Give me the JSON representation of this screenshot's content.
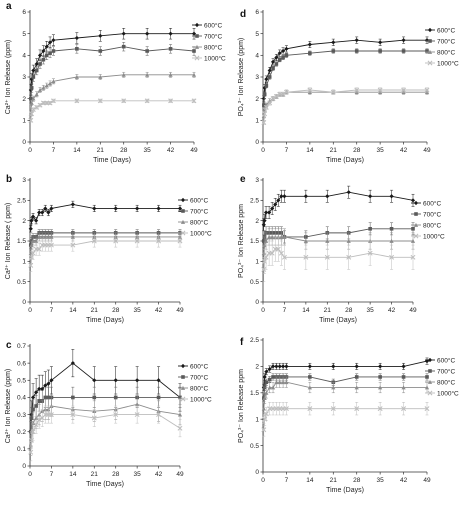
{
  "figure": {
    "x_axis_label": "Time (Days)",
    "x_ticks": [
      0,
      7,
      14,
      21,
      28,
      35,
      42,
      49
    ],
    "legend_labels": [
      "600°C",
      "700°C",
      "800°C",
      "1000°C"
    ],
    "series_colors": [
      "#1a1a1a",
      "#5a5a5a",
      "#8c8c8c",
      "#bdbdbd"
    ],
    "markers": [
      "diamond",
      "square",
      "triangle",
      "cross"
    ]
  },
  "chart_data": [
    {
      "panel": "a",
      "type": "line",
      "ylabel": "Ca²⁺ Ion Release (ppm)",
      "xlabel": "Time (Days)",
      "xlim": [
        0,
        49
      ],
      "ylim": [
        0,
        6
      ],
      "yticks": [
        0,
        1,
        2,
        3,
        4,
        5,
        6
      ],
      "x": [
        0.25,
        0.5,
        1,
        2,
        3,
        4,
        5,
        6,
        7,
        14,
        21,
        28,
        35,
        42,
        49
      ],
      "series": [
        {
          "name": "600°C",
          "values": [
            2.4,
            2.9,
            3.3,
            3.6,
            4.0,
            4.2,
            4.4,
            4.6,
            4.7,
            4.8,
            4.9,
            5.0,
            5.0,
            5.0,
            5.0
          ],
          "err": 0.25
        },
        {
          "name": "700°C",
          "values": [
            2.0,
            2.5,
            3.0,
            3.3,
            3.6,
            3.8,
            4.0,
            4.1,
            4.2,
            4.3,
            4.2,
            4.4,
            4.2,
            4.3,
            4.2
          ],
          "err": 0.2
        },
        {
          "name": "800°C",
          "values": [
            1.3,
            1.8,
            2.0,
            2.2,
            2.4,
            2.5,
            2.6,
            2.7,
            2.8,
            3.0,
            3.0,
            3.1,
            3.1,
            3.1,
            3.1
          ],
          "err": 0.12
        },
        {
          "name": "1000°C",
          "values": [
            1.0,
            1.3,
            1.5,
            1.6,
            1.7,
            1.8,
            1.8,
            1.8,
            1.9,
            1.9,
            1.9,
            1.9,
            1.9,
            1.9,
            1.9
          ],
          "err": 0.08
        }
      ]
    },
    {
      "panel": "b",
      "type": "line",
      "ylabel": "Ca²⁺ Ion Release ( ppm)",
      "xlabel": "Time (Days)",
      "xlim": [
        0,
        49
      ],
      "ylim": [
        0,
        3
      ],
      "yticks": [
        0,
        0.5,
        1,
        1.5,
        2,
        2.5,
        3
      ],
      "x": [
        0.25,
        0.5,
        1,
        2,
        3,
        4,
        5,
        6,
        7,
        14,
        21,
        28,
        35,
        42,
        49
      ],
      "series": [
        {
          "name": "600°C",
          "values": [
            1.8,
            2.0,
            2.1,
            2.0,
            2.2,
            2.2,
            2.3,
            2.2,
            2.3,
            2.4,
            2.3,
            2.3,
            2.3,
            2.3,
            2.3
          ],
          "err": 0.08
        },
        {
          "name": "700°C",
          "values": [
            1.4,
            1.5,
            1.6,
            1.6,
            1.7,
            1.7,
            1.7,
            1.7,
            1.7,
            1.7,
            1.7,
            1.7,
            1.7,
            1.7,
            1.7
          ],
          "err": 0.08
        },
        {
          "name": "800°C",
          "values": [
            1.2,
            1.4,
            1.5,
            1.5,
            1.6,
            1.6,
            1.6,
            1.6,
            1.6,
            1.6,
            1.6,
            1.6,
            1.6,
            1.6,
            1.6
          ],
          "err": 0.1
        },
        {
          "name": "1000°C",
          "values": [
            0.9,
            1.1,
            1.2,
            1.3,
            1.3,
            1.4,
            1.4,
            1.4,
            1.4,
            1.4,
            1.5,
            1.5,
            1.5,
            1.5,
            1.5
          ],
          "err": 0.15
        }
      ]
    },
    {
      "panel": "c",
      "type": "line",
      "ylabel": "Ca²⁺ Ion Release (ppm)",
      "xlabel": "Time (Days)",
      "xlim": [
        0,
        49
      ],
      "ylim": [
        0,
        0.7
      ],
      "yticks": [
        0,
        0.1,
        0.2,
        0.3,
        0.4,
        0.5,
        0.6,
        0.7
      ],
      "x": [
        0.25,
        0.5,
        1,
        2,
        3,
        4,
        5,
        6,
        7,
        14,
        21,
        28,
        35,
        42,
        49
      ],
      "series": [
        {
          "name": "600°C",
          "values": [
            0.2,
            0.3,
            0.4,
            0.43,
            0.45,
            0.45,
            0.47,
            0.48,
            0.5,
            0.6,
            0.5,
            0.5,
            0.5,
            0.5,
            0.4
          ],
          "err": 0.08
        },
        {
          "name": "700°C",
          "values": [
            0.2,
            0.28,
            0.33,
            0.35,
            0.38,
            0.38,
            0.4,
            0.4,
            0.4,
            0.4,
            0.4,
            0.4,
            0.4,
            0.4,
            0.4
          ],
          "err": 0.06
        },
        {
          "name": "800°C",
          "values": [
            0.12,
            0.2,
            0.25,
            0.28,
            0.3,
            0.32,
            0.33,
            0.33,
            0.35,
            0.33,
            0.32,
            0.33,
            0.36,
            0.32,
            0.3
          ],
          "err": 0.06
        },
        {
          "name": "1000°C",
          "values": [
            0.08,
            0.15,
            0.2,
            0.24,
            0.27,
            0.28,
            0.3,
            0.3,
            0.3,
            0.3,
            0.28,
            0.3,
            0.3,
            0.3,
            0.22
          ],
          "err": 0.05
        }
      ]
    },
    {
      "panel": "d",
      "type": "line",
      "ylabel": "PO₄³⁻ Ion Release (ppm)",
      "xlabel": "Time (Days)",
      "xlim": [
        0,
        49
      ],
      "ylim": [
        0,
        6
      ],
      "yticks": [
        0,
        1,
        2,
        3,
        4,
        5,
        6
      ],
      "x": [
        0.25,
        0.5,
        1,
        2,
        3,
        4,
        5,
        6,
        7,
        14,
        21,
        28,
        35,
        42,
        49
      ],
      "series": [
        {
          "name": "600°C",
          "values": [
            2.0,
            2.5,
            2.9,
            3.3,
            3.7,
            3.9,
            4.1,
            4.2,
            4.3,
            4.5,
            4.6,
            4.7,
            4.6,
            4.7,
            4.7
          ],
          "err": 0.15
        },
        {
          "name": "700°C",
          "values": [
            1.7,
            2.2,
            2.6,
            3.0,
            3.4,
            3.6,
            3.8,
            3.9,
            4.0,
            4.1,
            4.2,
            4.2,
            4.2,
            4.2,
            4.2
          ],
          "err": 0.1
        },
        {
          "name": "800°C",
          "values": [
            1.2,
            1.5,
            1.7,
            1.9,
            2.0,
            2.1,
            2.2,
            2.2,
            2.3,
            2.3,
            2.3,
            2.3,
            2.3,
            2.3,
            2.3
          ],
          "err": 0.1
        },
        {
          "name": "1000°C",
          "values": [
            0.9,
            1.3,
            1.6,
            1.8,
            2.0,
            2.1,
            2.2,
            2.2,
            2.3,
            2.4,
            2.3,
            2.4,
            2.4,
            2.4,
            2.4
          ],
          "err": 0.1
        }
      ]
    },
    {
      "panel": "e",
      "type": "line",
      "ylabel": "PO₄³⁻ Ion Release ppm",
      "xlabel": "Time (Days)",
      "xlim": [
        0,
        49
      ],
      "ylim": [
        0,
        3
      ],
      "yticks": [
        0,
        0.5,
        1,
        1.5,
        2,
        2.5,
        3
      ],
      "x": [
        0.25,
        0.5,
        1,
        2,
        3,
        4,
        5,
        6,
        7,
        14,
        21,
        28,
        35,
        42,
        49
      ],
      "series": [
        {
          "name": "600°C",
          "values": [
            1.9,
            2.0,
            2.2,
            2.2,
            2.3,
            2.4,
            2.5,
            2.6,
            2.6,
            2.6,
            2.6,
            2.7,
            2.6,
            2.6,
            2.5
          ],
          "err": 0.15
        },
        {
          "name": "700°C",
          "values": [
            1.5,
            1.6,
            1.7,
            1.7,
            1.7,
            1.7,
            1.7,
            1.7,
            1.6,
            1.6,
            1.7,
            1.7,
            1.8,
            1.8,
            1.8
          ],
          "err": 0.15
        },
        {
          "name": "800°C",
          "values": [
            1.2,
            1.4,
            1.5,
            1.6,
            1.6,
            1.6,
            1.6,
            1.6,
            1.6,
            1.5,
            1.5,
            1.5,
            1.5,
            1.5,
            1.5
          ],
          "err": 0.2
        },
        {
          "name": "1000°C",
          "values": [
            0.8,
            1.0,
            1.1,
            1.2,
            1.2,
            1.3,
            1.3,
            1.2,
            1.1,
            1.1,
            1.1,
            1.1,
            1.2,
            1.1,
            1.1
          ],
          "err": 0.3
        }
      ]
    },
    {
      "panel": "f",
      "type": "line",
      "ylabel": "PO₄³⁻ Ion Release ppm",
      "xlabel": "Time (Days)",
      "xlim": [
        0,
        49
      ],
      "ylim": [
        0,
        2.5
      ],
      "yticks": [
        0,
        0.5,
        1,
        1.5,
        2,
        2.5
      ],
      "x": [
        0.25,
        0.5,
        1,
        2,
        3,
        4,
        5,
        6,
        7,
        14,
        21,
        28,
        35,
        42,
        49
      ],
      "series": [
        {
          "name": "600°C",
          "values": [
            1.6,
            1.8,
            1.9,
            1.95,
            2.0,
            2.0,
            2.0,
            2.0,
            2.0,
            2.0,
            2.0,
            2.0,
            2.0,
            2.0,
            2.1
          ],
          "err": 0.06
        },
        {
          "name": "700°C",
          "values": [
            1.4,
            1.6,
            1.7,
            1.75,
            1.8,
            1.8,
            1.8,
            1.8,
            1.8,
            1.8,
            1.7,
            1.8,
            1.8,
            1.8,
            1.8
          ],
          "err": 0.06
        },
        {
          "name": "800°C",
          "values": [
            1.2,
            1.4,
            1.5,
            1.6,
            1.6,
            1.7,
            1.7,
            1.7,
            1.7,
            1.6,
            1.6,
            1.6,
            1.6,
            1.6,
            1.6
          ],
          "err": 0.1
        },
        {
          "name": "1000°C",
          "values": [
            0.8,
            1.0,
            1.1,
            1.2,
            1.2,
            1.2,
            1.2,
            1.2,
            1.2,
            1.2,
            1.2,
            1.2,
            1.2,
            1.2,
            1.2
          ],
          "err": 0.12
        }
      ]
    }
  ]
}
